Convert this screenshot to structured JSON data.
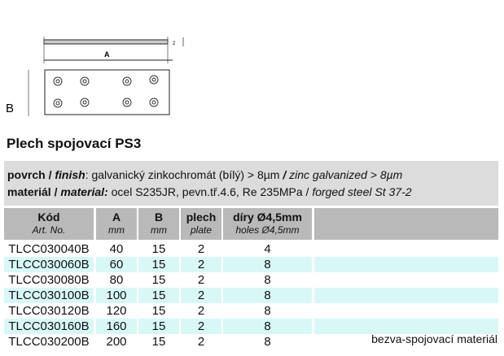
{
  "diagram": {
    "label_a": "A",
    "label_b": "B",
    "label_t": "2"
  },
  "title": "Plech spojovací PS3",
  "info": {
    "finish_label_cz": "povrch /",
    "finish_label_en": "finish",
    "finish_value": ": galvanický zinkochromát (bílý) > 8µm",
    "finish_value_en_sep": "/",
    "finish_value_en": "zinc galvanized > 8µm",
    "material_label_cz": "materiál /",
    "material_label_en": "material:",
    "material_value": "ocel S235JR, pevn.tř.4.6, Re 235MPa /",
    "material_value_en": "forged steel St 37-2"
  },
  "columns": [
    {
      "title": "Kód",
      "sub": "Art. No."
    },
    {
      "title": "A",
      "sub": "mm"
    },
    {
      "title": "B",
      "sub": "mm"
    },
    {
      "title": "plech",
      "sub": "plate"
    },
    {
      "title": "díry Ø4,5mm",
      "sub": "holes Ø4,5mm"
    }
  ],
  "rows": [
    [
      "TLCC030040B",
      "40",
      "15",
      "2",
      "4"
    ],
    [
      "TLCC030060B",
      "60",
      "15",
      "2",
      "8"
    ],
    [
      "TLCC030080B",
      "80",
      "15",
      "2",
      "8"
    ],
    [
      "TLCC030100B",
      "100",
      "15",
      "2",
      "8"
    ],
    [
      "TLCC030120B",
      "120",
      "15",
      "2",
      "8"
    ],
    [
      "TLCC030160B",
      "160",
      "15",
      "2",
      "8"
    ],
    [
      "TLCC030200B",
      "200",
      "15",
      "2",
      "8"
    ]
  ],
  "footer": "bezva-spojovací materiál",
  "colors": {
    "header_bg": "#b9b9b9",
    "info_bg": "#dcdcdc",
    "alt_row": "#d8f8f8"
  }
}
